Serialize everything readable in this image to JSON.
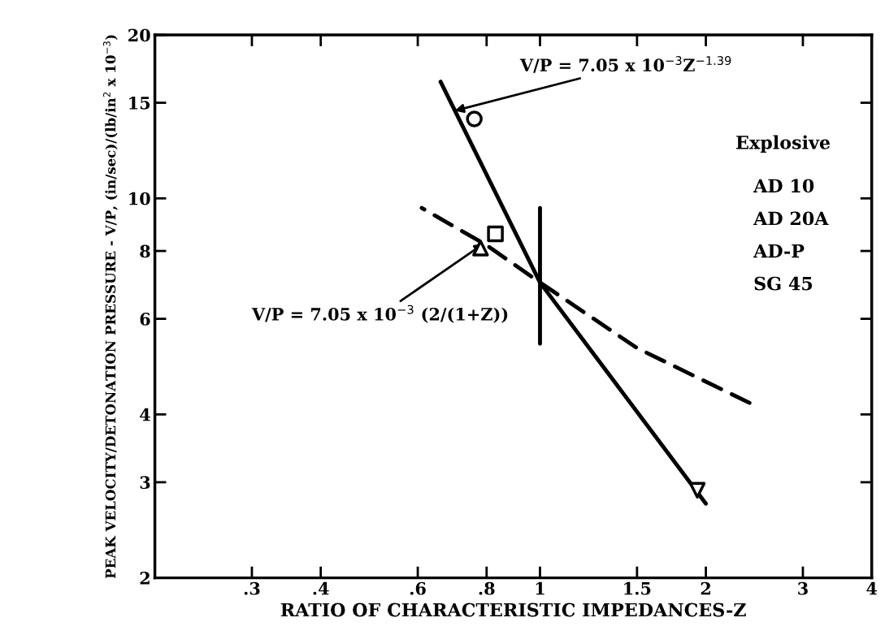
{
  "chart_data": {
    "type": "scatter",
    "xlabel": "RATIO OF CHARACTERISTIC IMPEDANCES-Z",
    "ylabel": "PEAK VELOCITY/DETONATION PRESSURE - V/P, (in/sec)/(lb/in$^{2}$ x 10$^{−3}$)",
    "log": "xy",
    "grid": false,
    "legend": false,
    "xlim": [
      0.2,
      4
    ],
    "ylim": [
      2,
      20
    ],
    "xticks": [
      {
        "value": 0.3,
        "label": ".3"
      },
      {
        "value": 0.4,
        "label": ".4"
      },
      {
        "value": 0.6,
        "label": ".6"
      },
      {
        "value": 0.8,
        "label": ".8"
      },
      1,
      1.5,
      2,
      3,
      4
    ],
    "yticks": [
      2,
      3,
      4,
      6,
      8,
      10,
      15,
      20
    ],
    "series": [
      {
        "type": "line",
        "color": "#000000",
        "line_style": "solid",
        "x": [
          0.66,
          1.0,
          2.0
        ],
        "values": [
          16.4,
          7.0,
          2.74
        ]
      },
      {
        "type": "line",
        "color": "#000000",
        "line_style": "dashed",
        "x": [
          0.61,
          0.8,
          1.0,
          1.5,
          2.4
        ],
        "values": [
          9.6,
          8.2,
          7.0,
          5.3,
          4.2
        ]
      },
      {
        "type": "line",
        "color": "#000000",
        "line_style": "solid",
        "x": [
          1.0,
          1.0
        ],
        "values": [
          9.6,
          5.4
        ]
      },
      {
        "color": "#000000",
        "marker": "circle",
        "x": [
          0.76
        ],
        "values": [
          14
        ]
      },
      {
        "color": "#000000",
        "marker": "square",
        "x": [
          0.83
        ],
        "values": [
          8.6
        ]
      },
      {
        "color": "#000000",
        "marker": "triangle",
        "x": [
          0.78
        ],
        "values": [
          8.1
        ]
      },
      {
        "color": "#000000",
        "marker": "triangle_down",
        "x": [
          1.93
        ],
        "values": [
          2.9
        ]
      }
    ],
    "annotations": [
      {
        "text": "V/P = 7.05 x 10$^{−3}$Z$^{−1.39}$",
        "x": 0.7,
        "y": 14.5
      },
      {
        "text": "V/P = 7.05 x 10$^{−3}$ (2/(1+Z))",
        "x": 0.79,
        "y": 8.25
      },
      "Explosive",
      "AD 10",
      "AD 20A",
      "AD-P",
      "SG 45"
    ]
  }
}
